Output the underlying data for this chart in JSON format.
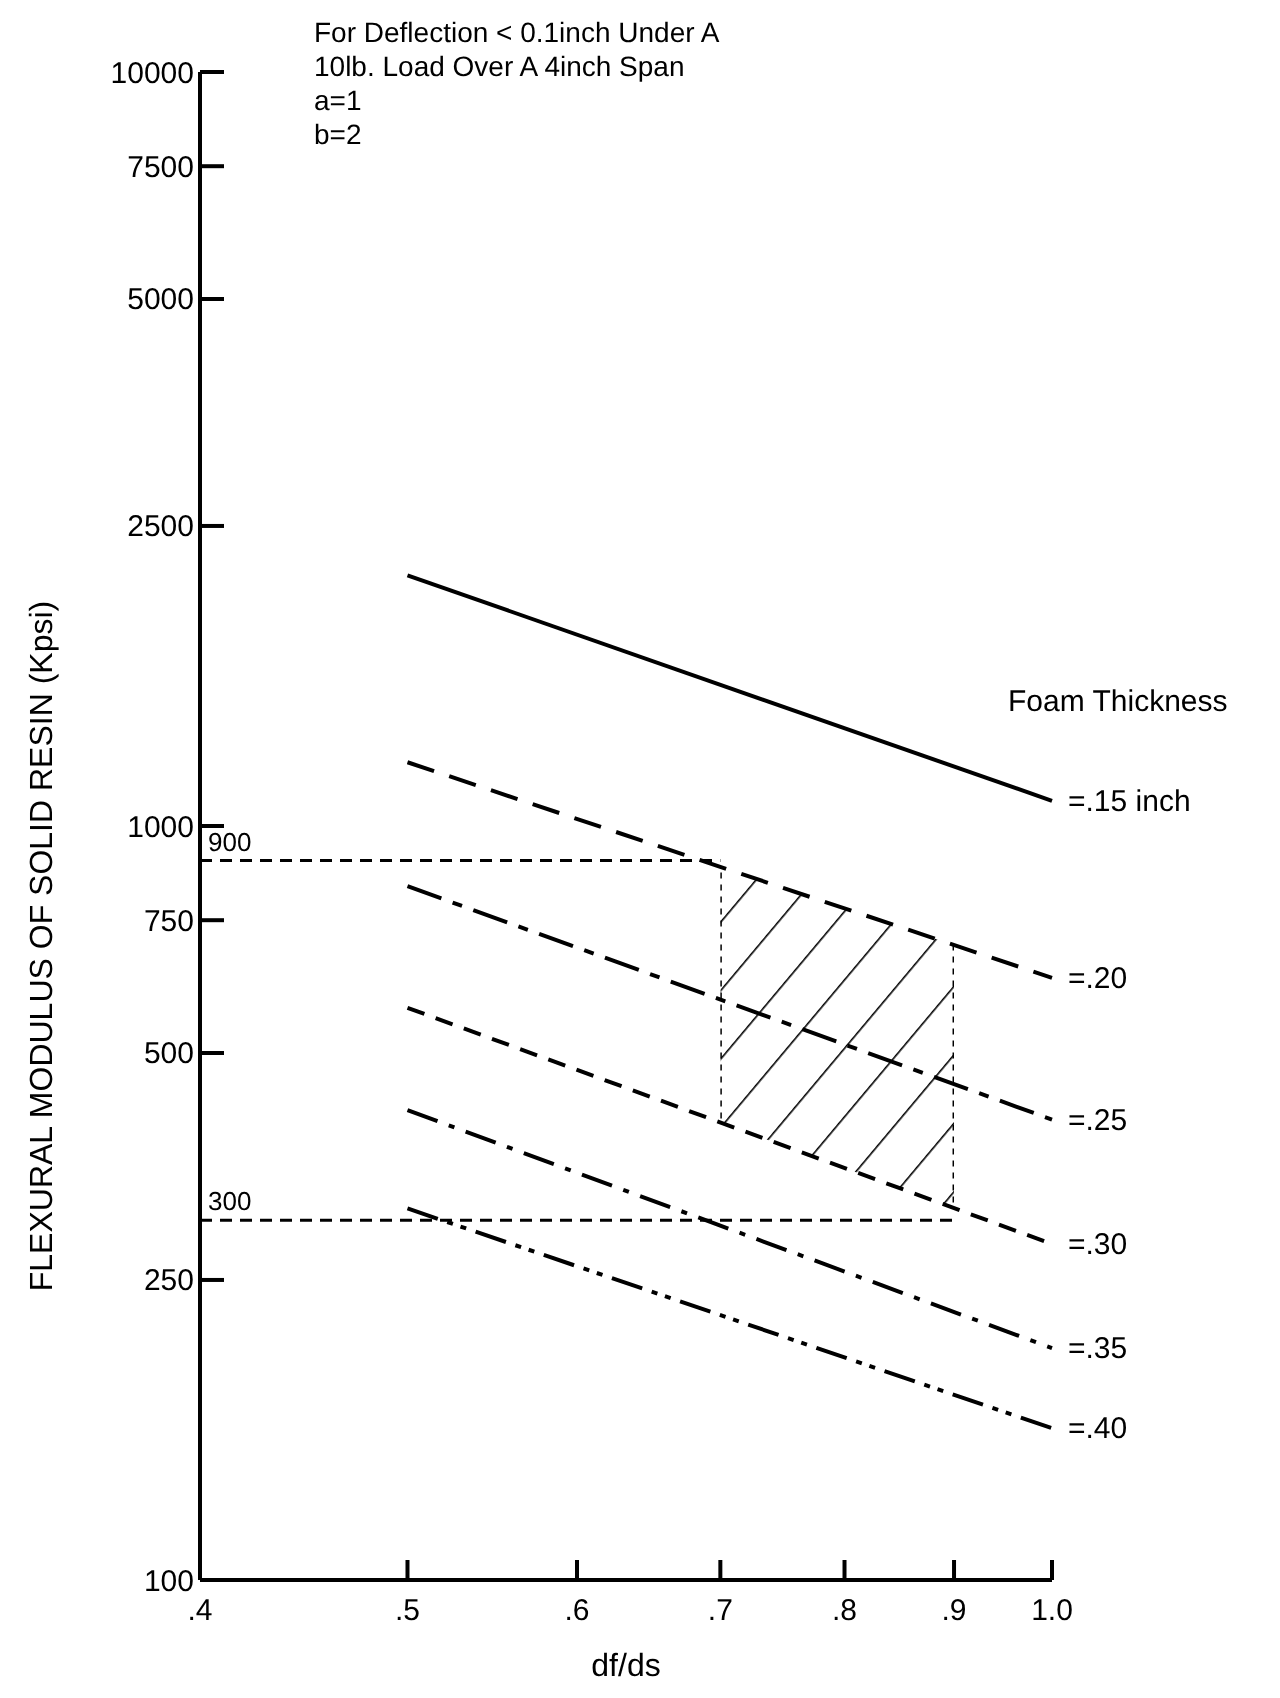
{
  "chart_data": {
    "type": "line",
    "xlabel": "df/ds",
    "ylabel": "FLEXURAL MODULUS OF SOLID RESIN (Kpsi)",
    "legend_title": "Foam Thickness",
    "annotations": [
      "For Deflection < 0.1inch Under A",
      "10lb. Load Over A 4inch Span",
      "a=1",
      "b=2"
    ],
    "log": "xy",
    "marker": "none",
    "x": [
      0.5,
      1.0
    ],
    "series": [
      {
        "name": "=.15 inch",
        "color": "#000000",
        "line_style": "solid",
        "values": [
          2150,
          1080
        ]
      },
      {
        "name": "=.20",
        "color": "#000000",
        "line_style": "dashed",
        "values": [
          1215,
          629
        ]
      },
      {
        "name": "=.25",
        "color": "#000000",
        "line_style": "dashed",
        "values": [
          832,
          408
        ]
      },
      {
        "name": "=.30",
        "color": "#000000",
        "line_style": "dashed",
        "values": [
          574,
          279
        ]
      },
      {
        "name": "=.35",
        "color": "#000000",
        "line_style": "dashed",
        "values": [
          420,
          203
        ]
      },
      {
        "name": "=.40",
        "color": "#000000",
        "line_style": "dashed",
        "values": [
          311,
          159
        ]
      }
    ],
    "xlim": [
      0.4,
      1.0
    ],
    "xticks": [
      {
        "value": 0.4,
        "label": ".4"
      },
      {
        "value": 0.5,
        "label": ".5"
      },
      {
        "value": 0.6,
        "label": ".6"
      },
      {
        "value": 0.7,
        "label": ".7"
      },
      {
        "value": 0.8,
        "label": ".8"
      },
      {
        "value": 0.9,
        "label": ".9"
      },
      {
        "value": 1.0,
        "label": "1.0"
      }
    ],
    "ylim": [
      100,
      10000
    ],
    "yticks": [
      100,
      250,
      500,
      750,
      1000,
      2500,
      5000,
      7500,
      10000
    ],
    "ref_lines": [
      {
        "axis": "y",
        "value": 900,
        "label": "900",
        "color": "#000000",
        "line_style": "dashed"
      },
      {
        "axis": "y",
        "value": 300,
        "label": "300",
        "color": "#000000",
        "line_style": "dashed"
      },
      {
        "axis": "x",
        "value": 0.7,
        "color": "#000000",
        "line_style": "dotted"
      },
      {
        "axis": "x",
        "value": 0.9,
        "color": "#000000",
        "line_style": "dotted"
      }
    ],
    "bands": [
      {
        "axis": "x",
        "from": 0.7,
        "to": 0.9,
        "color": "#000000"
      }
    ]
  }
}
